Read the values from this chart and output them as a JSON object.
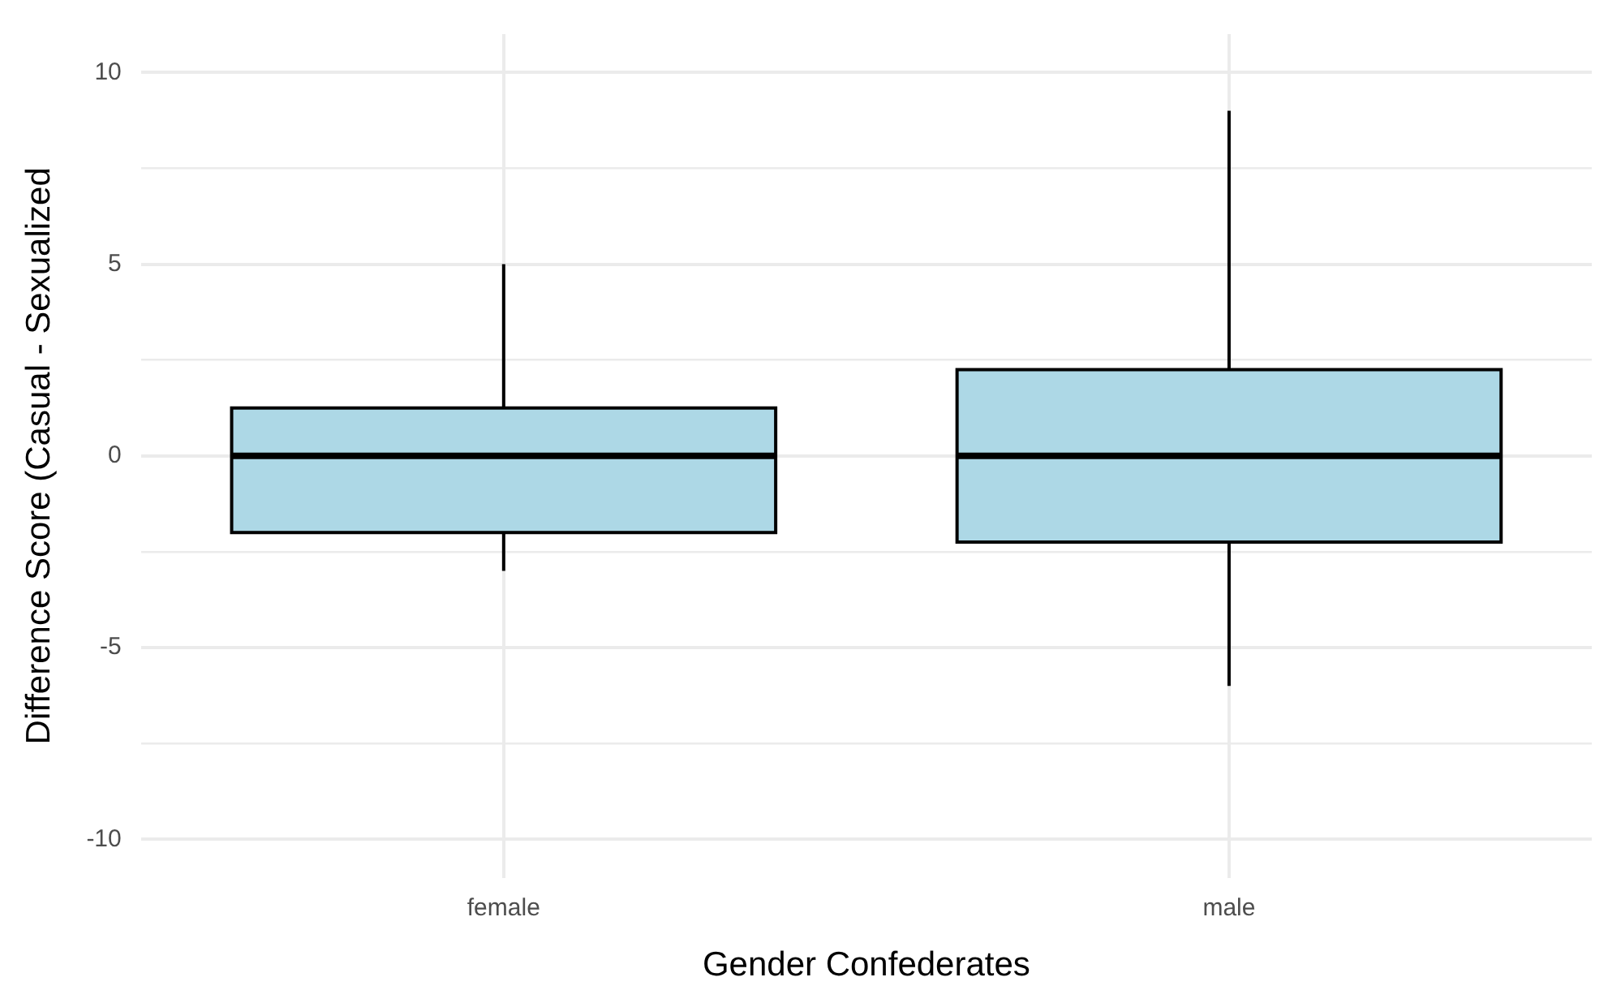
{
  "chart_data": {
    "type": "box",
    "xlabel": "Gender Confederates",
    "ylabel": "Difference Score (Casual - Sexualized",
    "categories": [
      "female",
      "male"
    ],
    "boxes": [
      {
        "low": -3,
        "q1": -2,
        "median": 0,
        "q3": 1.25,
        "high": 5
      },
      {
        "low": -6,
        "q1": -2.25,
        "median": 0,
        "q3": 2.25,
        "high": 9
      }
    ],
    "color": "#add8e6",
    "ylim": [
      -11,
      11
    ],
    "yticks": [
      -10,
      {
        "value": -7.5,
        "label": null
      },
      -5,
      {
        "value": -2.5,
        "label": null
      },
      0,
      {
        "value": 2.5,
        "label": null
      },
      5,
      {
        "value": 7.5,
        "label": null
      },
      10
    ],
    "grid": true
  }
}
